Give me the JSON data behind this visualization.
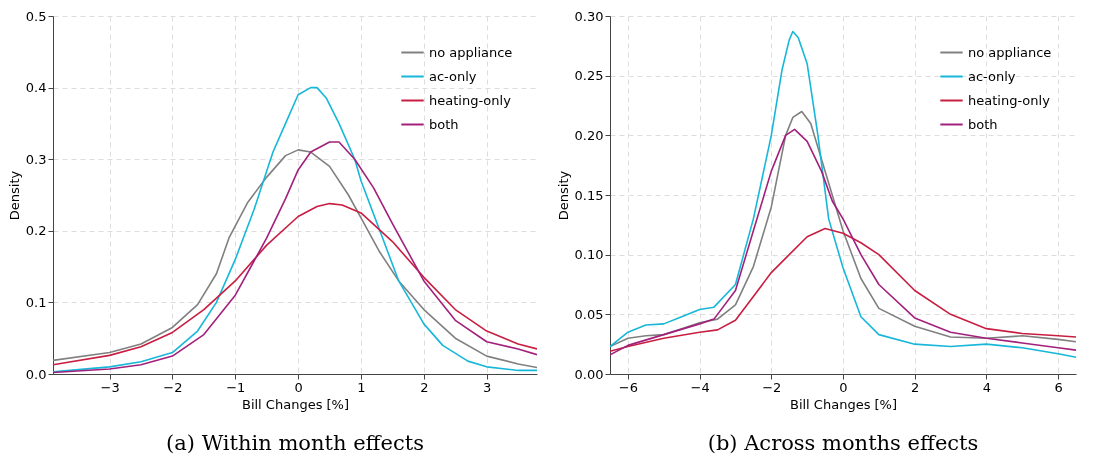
{
  "chart_data": [
    {
      "type": "line",
      "title": "(a) Within month effects",
      "xlabel": "Bill Changes [%]",
      "ylabel": "Density",
      "xlim": [
        -3.9,
        3.8
      ],
      "ylim": [
        0,
        0.5
      ],
      "xticks": [
        {
          "value": -3,
          "label": "−3"
        },
        {
          "value": -2,
          "label": "−2"
        },
        {
          "value": -1,
          "label": "−1"
        },
        0,
        1,
        2,
        3
      ],
      "yticks": [
        {
          "value": 0,
          "label": "0.0"
        },
        0.1,
        0.2,
        0.3,
        0.4,
        0.5
      ],
      "grid": true,
      "legend": "top right",
      "series": [
        {
          "name": "no appliance",
          "color": "#808080",
          "x": [
            -3.9,
            -3,
            -2.5,
            -2,
            -1.6,
            -1.3,
            -1.1,
            -0.8,
            -0.5,
            -0.2,
            0,
            0.2,
            0.5,
            0.8,
            1,
            1.3,
            1.6,
            2,
            2.5,
            3,
            3.5,
            3.8
          ],
          "values": [
            0.019,
            0.03,
            0.042,
            0.065,
            0.097,
            0.14,
            0.19,
            0.24,
            0.275,
            0.305,
            0.313,
            0.31,
            0.29,
            0.25,
            0.218,
            0.17,
            0.13,
            0.09,
            0.05,
            0.025,
            0.014,
            0.009
          ]
        },
        {
          "name": "ac-only",
          "color": "#17b7d9",
          "x": [
            -3.9,
            -3,
            -2.5,
            -2,
            -1.6,
            -1.3,
            -1,
            -0.7,
            -0.4,
            -0.2,
            0,
            0.2,
            0.3,
            0.45,
            0.65,
            0.9,
            1,
            1.3,
            1.6,
            2,
            2.3,
            2.7,
            3,
            3.5,
            3.8
          ],
          "values": [
            0.003,
            0.01,
            0.017,
            0.03,
            0.06,
            0.1,
            0.16,
            0.23,
            0.31,
            0.35,
            0.39,
            0.4,
            0.4,
            0.385,
            0.35,
            0.3,
            0.27,
            0.2,
            0.13,
            0.07,
            0.04,
            0.018,
            0.01,
            0.005,
            0.005
          ]
        },
        {
          "name": "heating-only",
          "color": "#c81e42",
          "x": [
            -3.9,
            -3,
            -2.5,
            -2,
            -1.5,
            -1,
            -0.5,
            0,
            0.3,
            0.5,
            0.7,
            1,
            1.5,
            2,
            2.5,
            3,
            3.5,
            3.8
          ],
          "values": [
            0.013,
            0.026,
            0.038,
            0.058,
            0.09,
            0.13,
            0.18,
            0.22,
            0.234,
            0.238,
            0.236,
            0.225,
            0.185,
            0.135,
            0.09,
            0.06,
            0.042,
            0.035
          ]
        },
        {
          "name": "both",
          "color": "#a2207c",
          "x": [
            -3.9,
            -3,
            -2.5,
            -2,
            -1.5,
            -1,
            -0.5,
            -0.2,
            0,
            0.2,
            0.5,
            0.65,
            0.9,
            1.2,
            1.5,
            2,
            2.5,
            3,
            3.5,
            3.8
          ],
          "values": [
            0.002,
            0.007,
            0.013,
            0.025,
            0.055,
            0.11,
            0.19,
            0.245,
            0.285,
            0.31,
            0.324,
            0.324,
            0.3,
            0.26,
            0.21,
            0.13,
            0.075,
            0.045,
            0.035,
            0.027
          ]
        }
      ]
    },
    {
      "type": "line",
      "title": "(b) Across months effects",
      "xlabel": "Bill Changes [%]",
      "ylabel": "Density",
      "xlim": [
        -6.5,
        6.5
      ],
      "ylim": [
        0,
        0.3
      ],
      "xticks": [
        {
          "value": -6,
          "label": "−6"
        },
        {
          "value": -4,
          "label": "−4"
        },
        {
          "value": -2,
          "label": "−2"
        },
        0,
        2,
        4,
        6
      ],
      "yticks": [
        {
          "value": 0,
          "label": "0.00"
        },
        0.05,
        {
          "value": 0.1,
          "label": "0.10"
        },
        0.15,
        {
          "value": 0.2,
          "label": "0.20"
        },
        0.25,
        {
          "value": 0.3,
          "label": "0.30"
        }
      ],
      "grid": true,
      "legend": "top right",
      "series": [
        {
          "name": "no appliance",
          "color": "#808080",
          "x": [
            -6.5,
            -6,
            -5.5,
            -5,
            -4.5,
            -4,
            -3.5,
            -3,
            -2.5,
            -2,
            -1.6,
            -1.4,
            -1.15,
            -0.9,
            -0.6,
            -0.3,
            0,
            0.5,
            1,
            2,
            3,
            4,
            5,
            6,
            6.5
          ],
          "values": [
            0.023,
            0.03,
            0.032,
            0.033,
            0.038,
            0.043,
            0.046,
            0.058,
            0.09,
            0.14,
            0.2,
            0.215,
            0.22,
            0.21,
            0.18,
            0.15,
            0.12,
            0.08,
            0.055,
            0.04,
            0.031,
            0.03,
            0.032,
            0.029,
            0.027
          ]
        },
        {
          "name": "ac-only",
          "color": "#17b7d9",
          "x": [
            -6.5,
            -6,
            -5.5,
            -5,
            -4.5,
            -4,
            -3.6,
            -3,
            -2.5,
            -2,
            -1.7,
            -1.5,
            -1.4,
            -1.25,
            -1,
            -0.7,
            -0.4,
            0,
            0.5,
            1,
            2,
            3,
            4,
            5,
            6,
            6.5
          ],
          "values": [
            0.023,
            0.035,
            0.041,
            0.042,
            0.048,
            0.054,
            0.056,
            0.075,
            0.13,
            0.2,
            0.255,
            0.28,
            0.287,
            0.282,
            0.26,
            0.2,
            0.13,
            0.089,
            0.048,
            0.033,
            0.025,
            0.023,
            0.025,
            0.022,
            0.017,
            0.014
          ]
        },
        {
          "name": "heating-only",
          "color": "#c81e42",
          "x": [
            -6.5,
            -6,
            -5,
            -4,
            -3.5,
            -3,
            -2.5,
            -2,
            -1.5,
            -1,
            -0.5,
            0,
            0.5,
            1,
            2,
            3,
            4,
            5,
            6,
            6.5
          ],
          "values": [
            0.019,
            0.023,
            0.03,
            0.035,
            0.037,
            0.045,
            0.065,
            0.085,
            0.1,
            0.115,
            0.122,
            0.118,
            0.11,
            0.1,
            0.07,
            0.05,
            0.038,
            0.034,
            0.032,
            0.031
          ]
        },
        {
          "name": "both",
          "color": "#a2207c",
          "x": [
            -6.5,
            -6,
            -5,
            -4,
            -3.6,
            -3,
            -2.5,
            -2,
            -1.6,
            -1.35,
            -1,
            -0.6,
            -0.3,
            0,
            0.5,
            1,
            2,
            3,
            4,
            5,
            6,
            6.5
          ],
          "values": [
            0.016,
            0.024,
            0.033,
            0.042,
            0.046,
            0.07,
            0.12,
            0.17,
            0.2,
            0.205,
            0.195,
            0.17,
            0.145,
            0.13,
            0.1,
            0.075,
            0.047,
            0.035,
            0.03,
            0.026,
            0.022,
            0.02
          ]
        }
      ]
    }
  ]
}
